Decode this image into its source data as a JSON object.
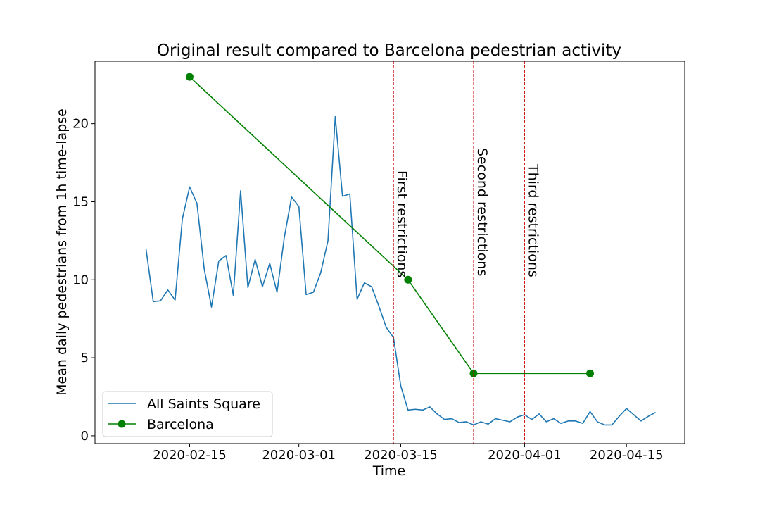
{
  "chart_data": {
    "type": "line",
    "title": "Original result compared to Barcelona pedestrian activity",
    "xlabel": "Time",
    "ylabel": "Mean daily pedestrians from 1h time-lapse",
    "xlim": [
      "2020-02-02",
      "2020-04-23"
    ],
    "ylim": [
      -0.5,
      24.0
    ],
    "x_ticks": [
      "2020-02-15",
      "2020-03-01",
      "2020-03-15",
      "2020-04-01",
      "2020-04-15"
    ],
    "y_ticks": [
      0,
      5,
      10,
      15,
      20
    ],
    "grid": false,
    "legend_position": "lower-left",
    "series": [
      {
        "name": "All Saints Square",
        "color": "#1f77b4",
        "marker": "none",
        "x": [
          "2020-02-09",
          "2020-02-10",
          "2020-02-11",
          "2020-02-12",
          "2020-02-13",
          "2020-02-14",
          "2020-02-15",
          "2020-02-16",
          "2020-02-17",
          "2020-02-18",
          "2020-02-19",
          "2020-02-20",
          "2020-02-21",
          "2020-02-22",
          "2020-02-23",
          "2020-02-24",
          "2020-02-25",
          "2020-02-26",
          "2020-02-27",
          "2020-02-28",
          "2020-02-29",
          "2020-03-01",
          "2020-03-02",
          "2020-03-03",
          "2020-03-04",
          "2020-03-05",
          "2020-03-06",
          "2020-03-07",
          "2020-03-08",
          "2020-03-09",
          "2020-03-10",
          "2020-03-11",
          "2020-03-12",
          "2020-03-13",
          "2020-03-14",
          "2020-03-15",
          "2020-03-16",
          "2020-03-17",
          "2020-03-18",
          "2020-03-19",
          "2020-03-20",
          "2020-03-21",
          "2020-03-22",
          "2020-03-23",
          "2020-03-24",
          "2020-03-25",
          "2020-03-26",
          "2020-03-27",
          "2020-03-28",
          "2020-03-29",
          "2020-03-30",
          "2020-03-31",
          "2020-04-01",
          "2020-04-02",
          "2020-04-03",
          "2020-04-04",
          "2020-04-05",
          "2020-04-06",
          "2020-04-07",
          "2020-04-08",
          "2020-04-09",
          "2020-04-10",
          "2020-04-11",
          "2020-04-12",
          "2020-04-13",
          "2020-04-14",
          "2020-04-15",
          "2020-04-16",
          "2020-04-17",
          "2020-04-18",
          "2020-04-19"
        ],
        "y": [
          12.0,
          8.6,
          8.65,
          9.35,
          8.7,
          13.9,
          15.95,
          14.9,
          10.7,
          8.25,
          11.2,
          11.55,
          9.0,
          15.7,
          9.5,
          11.3,
          9.55,
          11.05,
          9.2,
          12.7,
          15.3,
          14.7,
          9.05,
          9.2,
          10.45,
          12.5,
          20.45,
          15.35,
          15.5,
          8.75,
          9.8,
          9.55,
          8.3,
          6.95,
          6.3,
          3.2,
          1.65,
          1.7,
          1.65,
          1.85,
          1.4,
          1.05,
          1.1,
          0.85,
          0.9,
          0.7,
          0.9,
          0.75,
          1.1,
          1.0,
          0.9,
          1.2,
          1.35,
          1.05,
          1.4,
          0.9,
          1.1,
          0.8,
          0.95,
          0.95,
          0.8,
          1.55,
          0.9,
          0.7,
          0.7,
          1.25,
          1.75,
          1.35,
          0.95,
          1.25,
          1.5
        ]
      },
      {
        "name": "Barcelona",
        "color": "#008000",
        "marker": "circle",
        "x": [
          "2020-02-15",
          "2020-03-16",
          "2020-03-25",
          "2020-04-10"
        ],
        "y": [
          23.0,
          10.0,
          4.0,
          4.0
        ]
      }
    ],
    "annotations": [
      {
        "x": "2020-03-14",
        "label": "First restrictions",
        "line_color": "#cc0000",
        "line_style": "dashed"
      },
      {
        "x": "2020-03-25",
        "label": "Second restrictions",
        "line_color": "#cc0000",
        "line_style": "dashed"
      },
      {
        "x": "2020-04-01",
        "label": "Third restrictions",
        "line_color": "#cc0000",
        "line_style": "dashed"
      }
    ]
  }
}
